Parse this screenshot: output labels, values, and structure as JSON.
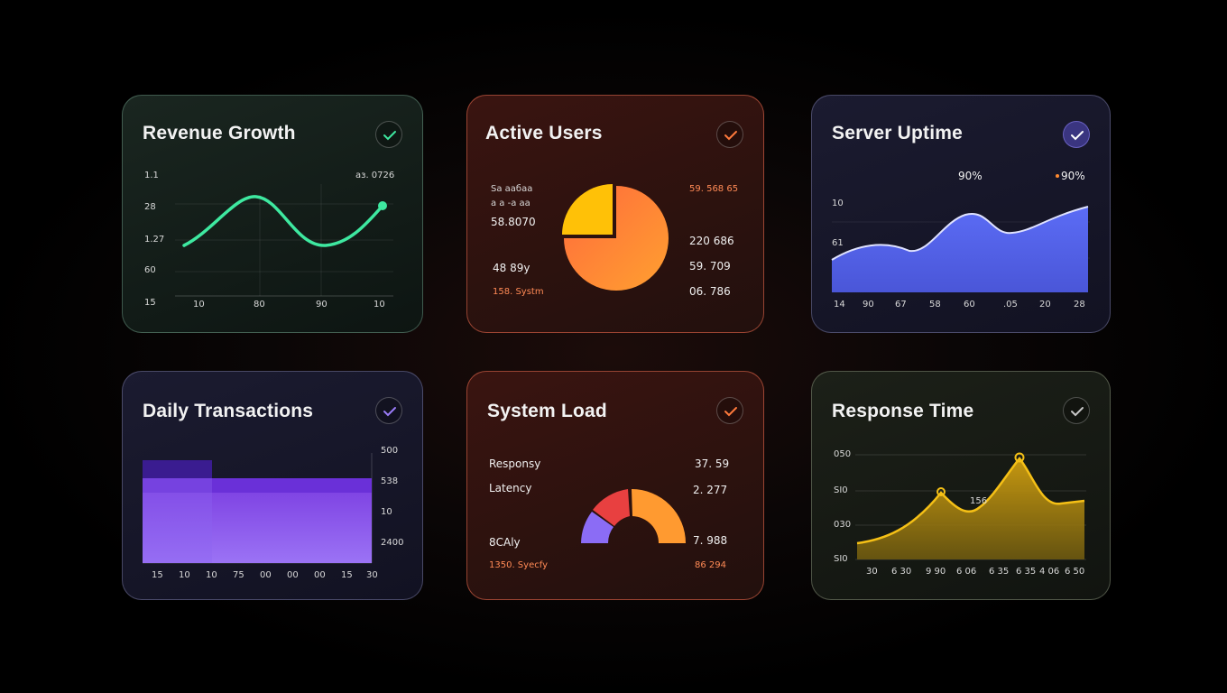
{
  "cards": {
    "revenue": {
      "title": "Revenue Growth",
      "accent": "#3ee8a0",
      "top_right_value": "аз. 0726",
      "y_labels": [
        "1.1",
        "28",
        "1.27",
        "60",
        "15"
      ],
      "x_labels": [
        "10",
        "80",
        "90",
        "10"
      ]
    },
    "users": {
      "title": "Active Users",
      "accent": "#ff7a3c",
      "left_labels": [
        "Sа аабаа",
        "а а -а аа",
        "58.8070",
        "48 89y",
        "158. Systm"
      ],
      "right_labels": [
        "59. 568 65",
        "220 686",
        "59. 709",
        "06. 786"
      ],
      "pie_colors": [
        "#ffc107",
        "#ff7a3c"
      ]
    },
    "uptime": {
      "title": "Server Uptime",
      "accent": "#5b6cf5",
      "top_labels": [
        "90%",
        "90%"
      ],
      "y_labels": [
        "10",
        "61"
      ],
      "x_labels": [
        "14",
        "90",
        "67",
        "58",
        "60",
        ".05",
        "20",
        "28"
      ]
    },
    "transactions": {
      "title": "Daily Transactions",
      "accent": "#8b5cf6",
      "right_labels": [
        "500",
        "538",
        "10",
        "2400"
      ],
      "x_labels": [
        "15",
        "10",
        "10",
        "75",
        "00",
        "00",
        "00",
        "15",
        "30"
      ]
    },
    "load": {
      "title": "System Load",
      "accent": "#ff7a3c",
      "left_labels": [
        "Responsy",
        "Latency",
        "8CAly",
        "1350. Syecfy"
      ],
      "right_labels": [
        "37. 59",
        "2. 277",
        "7. 988",
        "86 294"
      ],
      "gauge_colors": [
        "#8b6cf5",
        "#e84040",
        "#ff9a30"
      ]
    },
    "response": {
      "title": "Response Time",
      "accent": "#f5c016",
      "y_labels": [
        "050",
        "SI0",
        "030",
        "SI0"
      ],
      "peak_label": "156",
      "x_labels": [
        "30",
        "6 30",
        "9 90",
        "6 06",
        "6 35",
        "6 35",
        "4 06",
        "6 50"
      ]
    }
  }
}
